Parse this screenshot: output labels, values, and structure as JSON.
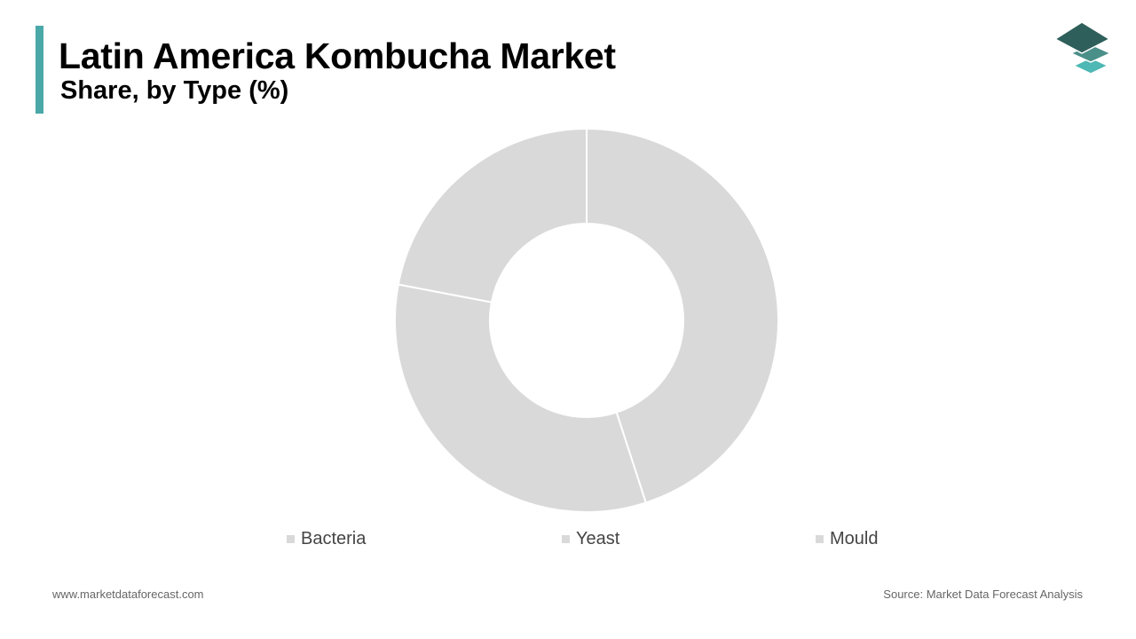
{
  "header": {
    "title": "Latin America Kombucha Market",
    "subtitle": "Share, by Type (%)",
    "accent_color": "#4aa8a8"
  },
  "logo": {
    "icon": "stacked-layers-icon",
    "colors": [
      "#2f5f5a",
      "#4a8f88",
      "#4db8b4"
    ]
  },
  "chart_data": {
    "type": "pie",
    "style": "donut",
    "title": "",
    "categories": [
      "Bacteria",
      "Yeast",
      "Mould"
    ],
    "values": [
      45,
      33,
      22
    ],
    "colors": [
      "#d9d9d9",
      "#d9d9d9",
      "#d9d9d9"
    ],
    "legend_position": "bottom"
  },
  "footer": {
    "website": "www.marketdataforecast.com",
    "source": "Source: Market Data Forecast Analysis"
  }
}
